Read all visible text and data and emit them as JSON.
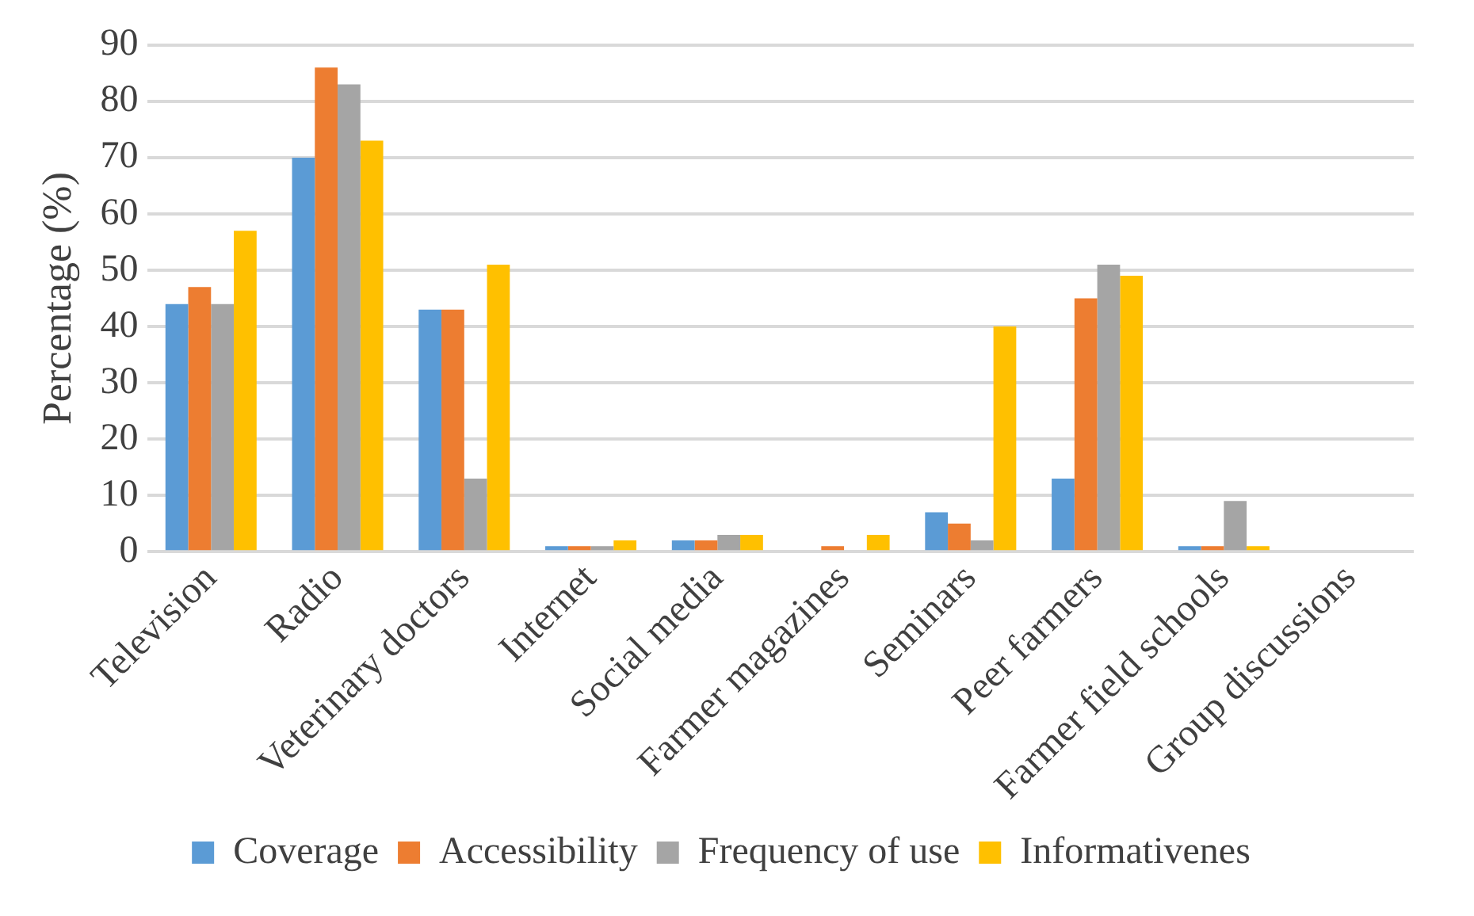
{
  "chart_data": {
    "type": "bar",
    "ylabel": "Percentage (%)",
    "categories": [
      "Television",
      "Radio",
      "Veterinary doctors",
      "Internet",
      "Social media",
      "Farmer magazines",
      "Seminars",
      "Peer farmers",
      "Farmer field schools",
      "Group discussions"
    ],
    "series": [
      {
        "name": "Coverage",
        "color": "#5b9bd5",
        "values": [
          44,
          70,
          43,
          1,
          2,
          0,
          7,
          13,
          1,
          0
        ]
      },
      {
        "name": "Accessibility",
        "color": "#ed7d31",
        "values": [
          47,
          86,
          43,
          1,
          2,
          1,
          5,
          45,
          1,
          0
        ]
      },
      {
        "name": "Frequency of use",
        "color": "#a5a5a5",
        "values": [
          44,
          83,
          13,
          1,
          3,
          0,
          2,
          51,
          9,
          0
        ]
      },
      {
        "name": "Informativenes",
        "color": "#ffc000",
        "values": [
          57,
          73,
          51,
          2,
          3,
          3,
          40,
          49,
          1,
          0
        ]
      }
    ],
    "ylim": [
      0,
      90
    ],
    "yticks": [
      0,
      10,
      20,
      30,
      40,
      50,
      60,
      70,
      80,
      90
    ],
    "grid": "y",
    "legend": "bottom"
  }
}
